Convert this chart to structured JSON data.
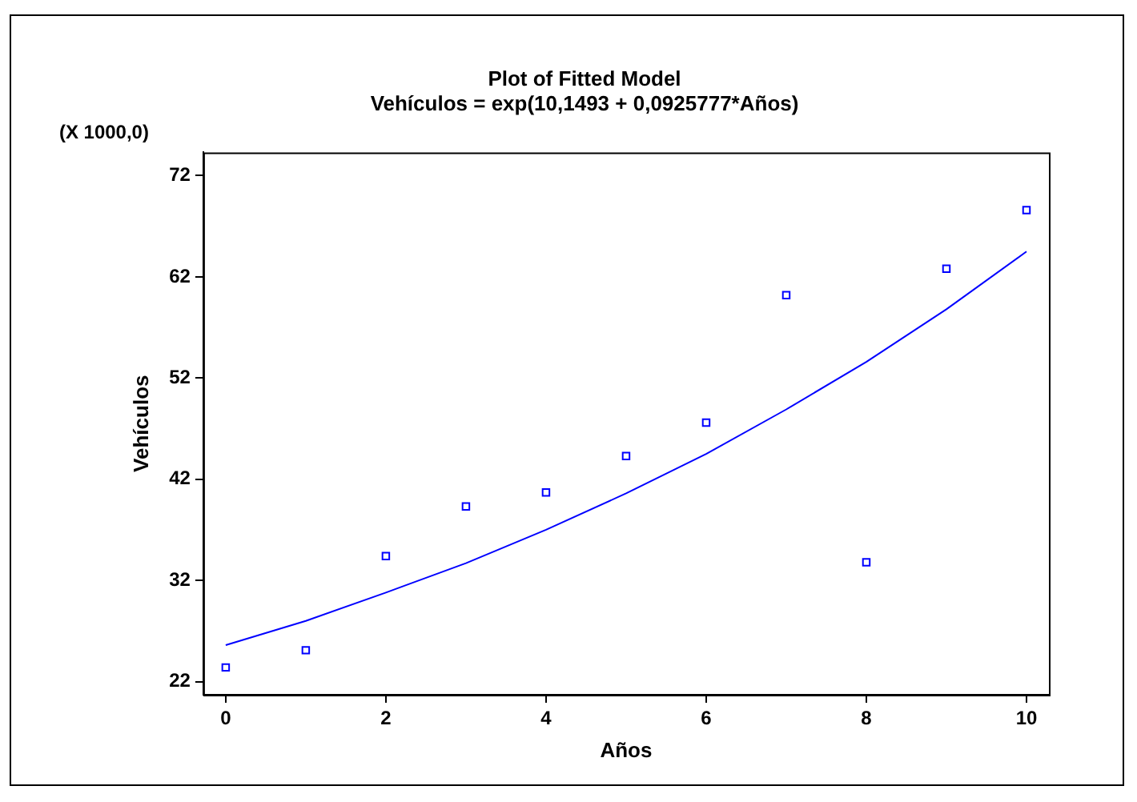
{
  "chart_data": {
    "type": "scatter",
    "title": "Plot of Fitted Model",
    "subtitle": "Vehículos = exp(10,1493 + 0,0925777*Años)",
    "xlabel": "Años",
    "ylabel": "Vehículos",
    "annotations": [
      "(X 1000,0)"
    ],
    "series": [
      {
        "marker": "square",
        "color": "#0000ff",
        "x": [
          0,
          1,
          2,
          3,
          4,
          5,
          6,
          7,
          8,
          9,
          10
        ],
        "values": [
          23.4,
          25.1,
          34.4,
          39.3,
          40.7,
          44.3,
          47.6,
          60.2,
          33.8,
          62.8,
          68.6
        ]
      },
      {
        "type": "line",
        "marker": "none",
        "color": "#0000ff",
        "x": [
          0,
          1,
          2,
          3,
          4,
          5,
          6,
          7,
          8,
          9,
          10
        ],
        "values": [
          25.6,
          28.0,
          30.8,
          33.7,
          37.0,
          40.6,
          44.5,
          48.9,
          53.6,
          58.8,
          64.5
        ]
      }
    ],
    "xlim": [
      -0.28,
      10.28
    ],
    "xticks": [
      0,
      2,
      4,
      6,
      8,
      10
    ],
    "ylim": [
      20.7,
      74.3
    ],
    "yticks": [
      22,
      32,
      42,
      52,
      62,
      72
    ],
    "grid": false,
    "legend": false
  }
}
